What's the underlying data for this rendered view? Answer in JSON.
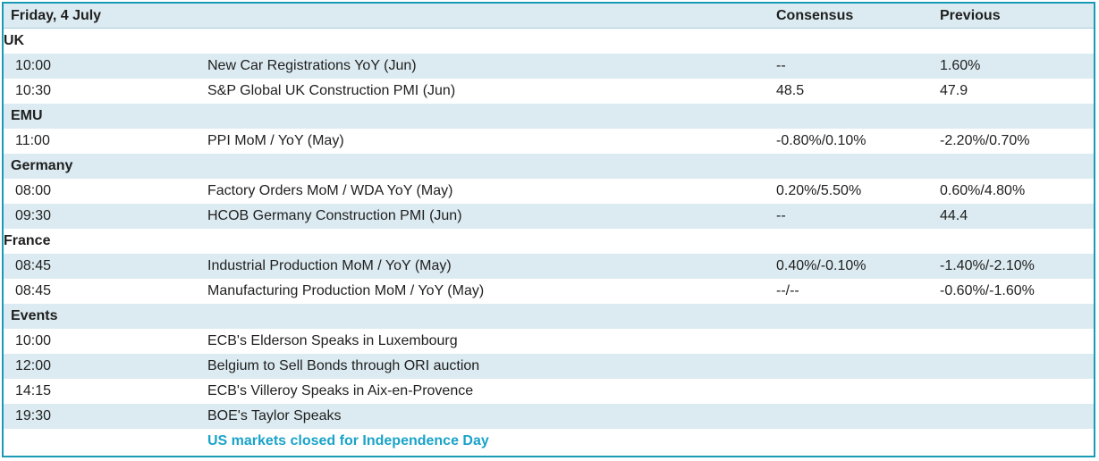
{
  "header": {
    "date": "Friday, 4 July",
    "consensus": "Consensus",
    "previous": "Previous"
  },
  "groups": [
    {
      "name": "UK",
      "rows": [
        {
          "time": "10:00",
          "event": "New Car Registrations YoY (Jun)",
          "consensus": "--",
          "previous": "1.60%"
        },
        {
          "time": "10:30",
          "event": "S&P Global UK Construction PMI (Jun)",
          "consensus": "48.5",
          "previous": "47.9"
        }
      ]
    },
    {
      "name": "EMU",
      "rows": [
        {
          "time": "11:00",
          "event": "PPI MoM / YoY (May)",
          "consensus": "-0.80%/0.10%",
          "previous": "-2.20%/0.70%"
        }
      ]
    },
    {
      "name": "Germany",
      "rows": [
        {
          "time": "08:00",
          "event": "Factory Orders MoM / WDA YoY (May)",
          "consensus": "0.20%/5.50%",
          "previous": "0.60%/4.80%"
        },
        {
          "time": "09:30",
          "event": "HCOB Germany Construction PMI (Jun)",
          "consensus": "--",
          "previous": "44.4"
        }
      ]
    },
    {
      "name": "France",
      "rows": [
        {
          "time": "08:45",
          "event": "Industrial Production MoM / YoY (May)",
          "consensus": "0.40%/-0.10%",
          "previous": "-1.40%/-2.10%"
        },
        {
          "time": "08:45",
          "event": "Manufacturing Production MoM / YoY (May)",
          "consensus": "--/--",
          "previous": "-0.60%/-1.60%"
        }
      ]
    },
    {
      "name": "Events",
      "rows": [
        {
          "time": "10:00",
          "event": "ECB's Elderson Speaks in Luxembourg",
          "consensus": "",
          "previous": ""
        },
        {
          "time": "12:00",
          "event": "Belgium to Sell Bonds through ORI auction",
          "consensus": "",
          "previous": ""
        },
        {
          "time": "14:15",
          "event": "ECB's Villeroy Speaks in Aix-en-Provence",
          "consensus": "",
          "previous": ""
        },
        {
          "time": "19:30",
          "event": "BOE's Taylor Speaks",
          "consensus": "",
          "previous": ""
        }
      ]
    }
  ],
  "footer_note": "US markets closed for Independence Day",
  "colors": {
    "accent": "#1aa3c8",
    "border": "#1a9bb5",
    "shade": "#dcebf1"
  }
}
